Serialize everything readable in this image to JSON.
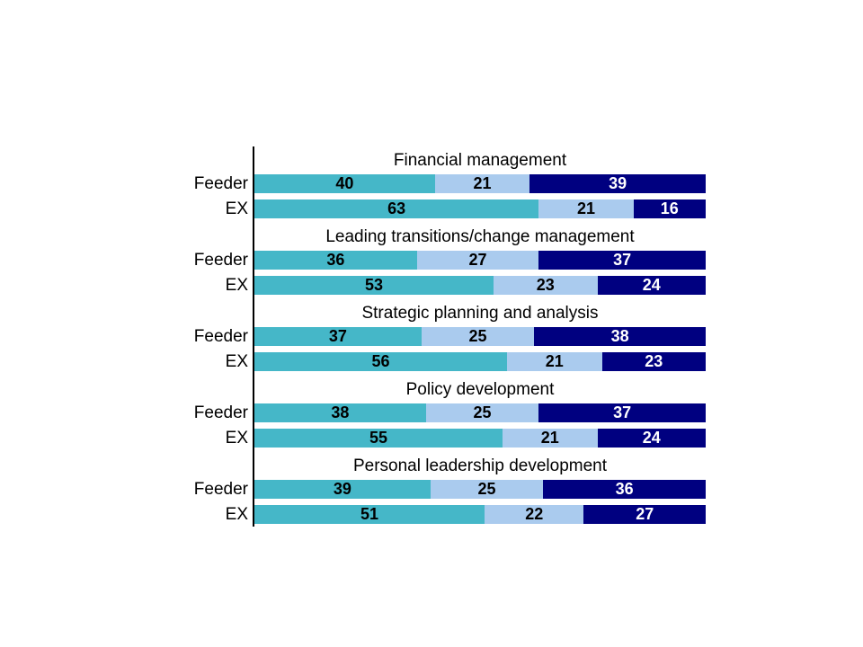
{
  "chart_data": {
    "type": "bar",
    "orientation": "horizontal-stacked",
    "xlim": [
      0,
      100
    ],
    "grid": false,
    "legend": null,
    "axis_color": "#000000",
    "background_color": "#ffffff",
    "segment_colors": [
      "#45b7c8",
      "#aacbee",
      "#000080"
    ],
    "segment_text_colors": [
      "#000000",
      "#000000",
      "#ffffff"
    ],
    "groups": [
      {
        "title": "Financial management",
        "rows": [
          {
            "label": "Feeder",
            "values": [
              40,
              21,
              39
            ]
          },
          {
            "label": "EX",
            "values": [
              63,
              21,
              16
            ]
          }
        ]
      },
      {
        "title": "Leading transitions/change management",
        "rows": [
          {
            "label": "Feeder",
            "values": [
              36,
              27,
              37
            ]
          },
          {
            "label": "EX",
            "values": [
              53,
              23,
              24
            ]
          }
        ]
      },
      {
        "title": "Strategic planning and analysis",
        "rows": [
          {
            "label": "Feeder",
            "values": [
              37,
              25,
              38
            ]
          },
          {
            "label": "EX",
            "values": [
              56,
              21,
              23
            ]
          }
        ]
      },
      {
        "title": "Policy development",
        "rows": [
          {
            "label": "Feeder",
            "values": [
              38,
              25,
              37
            ]
          },
          {
            "label": "EX",
            "values": [
              55,
              21,
              24
            ]
          }
        ]
      },
      {
        "title": "Personal leadership development",
        "rows": [
          {
            "label": "Feeder",
            "values": [
              39,
              25,
              36
            ]
          },
          {
            "label": "EX",
            "values": [
              51,
              22,
              27
            ]
          }
        ]
      }
    ]
  }
}
